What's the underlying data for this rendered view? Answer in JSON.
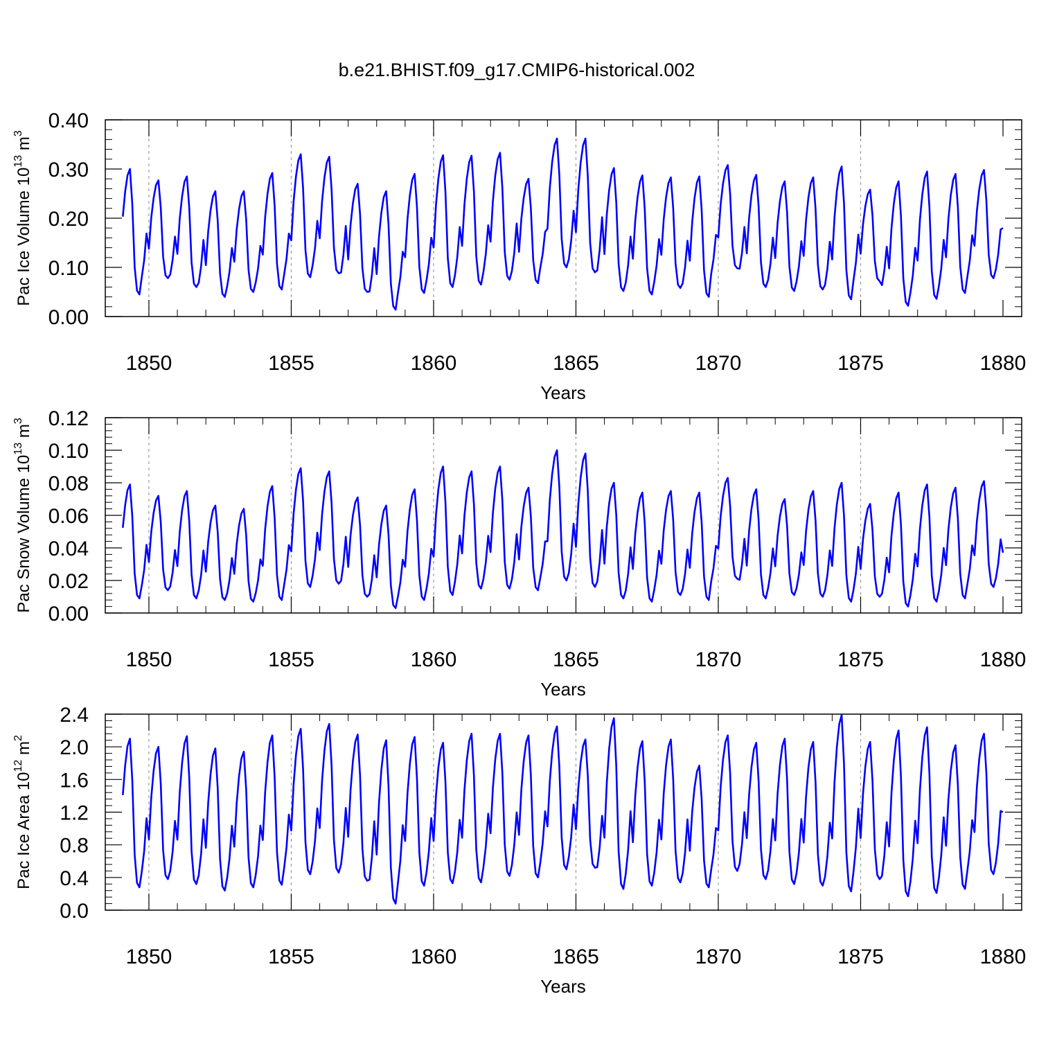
{
  "title": "b.e21.BHIST.f09_g17.CMIP6-historical.002",
  "x_axis_label": "Years",
  "chart_data": [
    {
      "type": "line",
      "title": "b.e21.BHIST.f09_g17.CMIP6-historical.002",
      "ylabel": "Pac Ice Volume",
      "unit_base": "10",
      "unit_exp": "13",
      "unit_main": "m",
      "unit_pow": "3",
      "xlabel": "Years",
      "xlim": [
        1849.125,
        1880.0
      ],
      "ylim": [
        0.0,
        0.4
      ],
      "yticks": [
        0.0,
        0.1,
        0.2,
        0.3,
        0.4
      ],
      "ytick_labels": [
        "0.00",
        "0.10",
        "0.20",
        "0.30",
        "0.40"
      ],
      "xticks": [
        1850,
        1855,
        1860,
        1865,
        1870,
        1875,
        1880
      ],
      "xtick_labels": [
        "1850",
        "1855",
        "1860",
        "1865",
        "1870",
        "1875",
        "1880"
      ],
      "color": "#0000ff",
      "annual": {
        "min": [
          0.045,
          0.078,
          0.06,
          0.04,
          0.05,
          0.055,
          0.08,
          0.088,
          0.05,
          0.014,
          0.048,
          0.06,
          0.065,
          0.075,
          0.068,
          0.1,
          0.09,
          0.052,
          0.045,
          0.058,
          0.04,
          0.098,
          0.06,
          0.052,
          0.055,
          0.035,
          0.072,
          0.022,
          0.036,
          0.048,
          0.078
        ],
        "max": [
          0.3,
          0.277,
          0.285,
          0.255,
          0.255,
          0.292,
          0.33,
          0.325,
          0.27,
          0.255,
          0.29,
          0.328,
          0.327,
          0.333,
          0.28,
          0.362,
          0.362,
          0.302,
          0.287,
          0.283,
          0.285,
          0.308,
          0.288,
          0.275,
          0.283,
          0.305,
          0.258,
          0.275,
          0.295,
          0.29,
          0.298
        ]
      },
      "end_value": 0.18
    },
    {
      "type": "line",
      "ylabel": "Pac Snow Volume",
      "unit_base": "10",
      "unit_exp": "13",
      "unit_main": "m",
      "unit_pow": "3",
      "xlabel": "Years",
      "xlim": [
        1849.125,
        1880.0
      ],
      "ylim": [
        0.0,
        0.12
      ],
      "yticks": [
        0.0,
        0.02,
        0.04,
        0.06,
        0.08,
        0.1,
        0.12
      ],
      "ytick_labels": [
        "0.00",
        "0.02",
        "0.04",
        "0.06",
        "0.08",
        "0.10",
        "0.12"
      ],
      "xticks": [
        1850,
        1855,
        1860,
        1865,
        1870,
        1875,
        1880
      ],
      "xtick_labels": [
        "1850",
        "1855",
        "1860",
        "1865",
        "1870",
        "1875",
        "1880"
      ],
      "color": "#0000ff",
      "annual": {
        "min": [
          0.009,
          0.014,
          0.009,
          0.008,
          0.007,
          0.008,
          0.016,
          0.018,
          0.01,
          0.003,
          0.008,
          0.011,
          0.015,
          0.015,
          0.014,
          0.02,
          0.016,
          0.009,
          0.007,
          0.011,
          0.008,
          0.021,
          0.009,
          0.011,
          0.01,
          0.007,
          0.01,
          0.004,
          0.007,
          0.009,
          0.016
        ],
        "max": [
          0.079,
          0.072,
          0.075,
          0.066,
          0.064,
          0.078,
          0.089,
          0.087,
          0.071,
          0.066,
          0.076,
          0.09,
          0.087,
          0.09,
          0.077,
          0.1,
          0.098,
          0.08,
          0.074,
          0.075,
          0.074,
          0.083,
          0.076,
          0.07,
          0.075,
          0.08,
          0.067,
          0.074,
          0.079,
          0.077,
          0.081
        ]
      },
      "end_value": 0.037
    },
    {
      "type": "line",
      "ylabel": "Pac Ice Area",
      "unit_base": "10",
      "unit_exp": "12",
      "unit_main": "m",
      "unit_pow": "2",
      "xlabel": "Years",
      "xlim": [
        1849.125,
        1880.0
      ],
      "ylim": [
        0.0,
        2.4
      ],
      "yticks": [
        0.0,
        0.4,
        0.8,
        1.2,
        1.6,
        2.0,
        2.4
      ],
      "ytick_labels": [
        "0.0",
        "0.4",
        "0.8",
        "1.2",
        "1.6",
        "2.0",
        "2.4"
      ],
      "xticks": [
        1850,
        1855,
        1860,
        1865,
        1870,
        1875,
        1880
      ],
      "xtick_labels": [
        "1850",
        "1855",
        "1860",
        "1865",
        "1870",
        "1875",
        "1880"
      ],
      "color": "#0000ff",
      "annual": {
        "min": [
          0.28,
          0.38,
          0.32,
          0.24,
          0.28,
          0.31,
          0.44,
          0.46,
          0.36,
          0.08,
          0.3,
          0.33,
          0.34,
          0.42,
          0.4,
          0.5,
          0.52,
          0.26,
          0.3,
          0.34,
          0.28,
          0.48,
          0.38,
          0.32,
          0.3,
          0.23,
          0.38,
          0.17,
          0.21,
          0.26,
          0.44
        ],
        "max": [
          2.1,
          2.0,
          2.13,
          1.98,
          1.94,
          2.14,
          2.22,
          2.28,
          2.15,
          2.08,
          2.12,
          2.05,
          2.16,
          2.16,
          2.14,
          2.25,
          2.09,
          2.35,
          2.07,
          2.09,
          1.77,
          2.14,
          2.05,
          2.1,
          2.06,
          2.39,
          2.06,
          2.2,
          2.24,
          2.02,
          2.16
        ]
      },
      "end_value": 1.2
    }
  ]
}
